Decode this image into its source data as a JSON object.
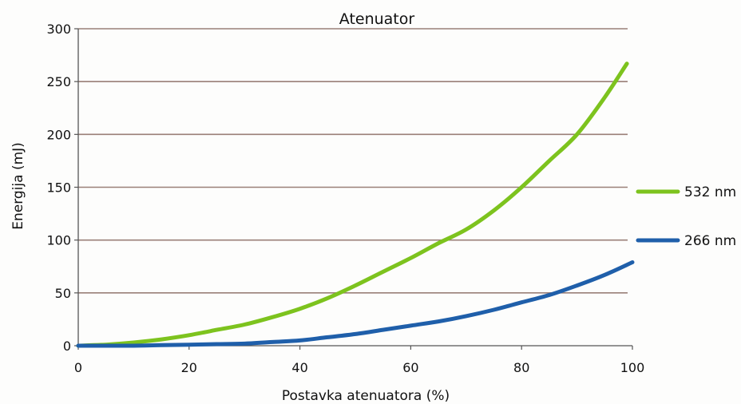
{
  "chart_data": {
    "type": "line",
    "title": "Atenuator",
    "xlabel": "Postavka atenuatora (%)",
    "ylabel": "Energija (mJ)",
    "xlim": [
      0,
      100
    ],
    "ylim": [
      0,
      300
    ],
    "x_ticks": [
      "0",
      "20",
      "40",
      "60",
      "80",
      "100"
    ],
    "y_ticks": [
      "0",
      "50",
      "100",
      "150",
      "200",
      "250",
      "300"
    ],
    "grid": "horizontal",
    "legend_position": "right",
    "series": [
      {
        "name": "532 nm",
        "color": "#7dc31e",
        "x": [
          0,
          5,
          10,
          15,
          20,
          25,
          30,
          35,
          40,
          45,
          50,
          55,
          60,
          65,
          70,
          75,
          80,
          85,
          90,
          95,
          99
        ],
        "values": [
          0,
          1,
          3,
          6,
          10,
          15,
          20,
          27,
          35,
          45,
          57,
          70,
          83,
          97,
          110,
          128,
          150,
          175,
          200,
          235,
          267
        ]
      },
      {
        "name": "266 nm",
        "color": "#1f5faa",
        "x": [
          0,
          5,
          10,
          15,
          20,
          25,
          30,
          35,
          40,
          45,
          50,
          55,
          60,
          65,
          70,
          75,
          80,
          85,
          90,
          95,
          100
        ],
        "values": [
          0,
          0,
          0,
          0.5,
          1,
          1.5,
          2,
          3.5,
          5,
          8,
          11,
          15,
          19,
          23,
          28,
          34,
          41,
          48,
          57,
          67,
          79
        ]
      }
    ]
  }
}
